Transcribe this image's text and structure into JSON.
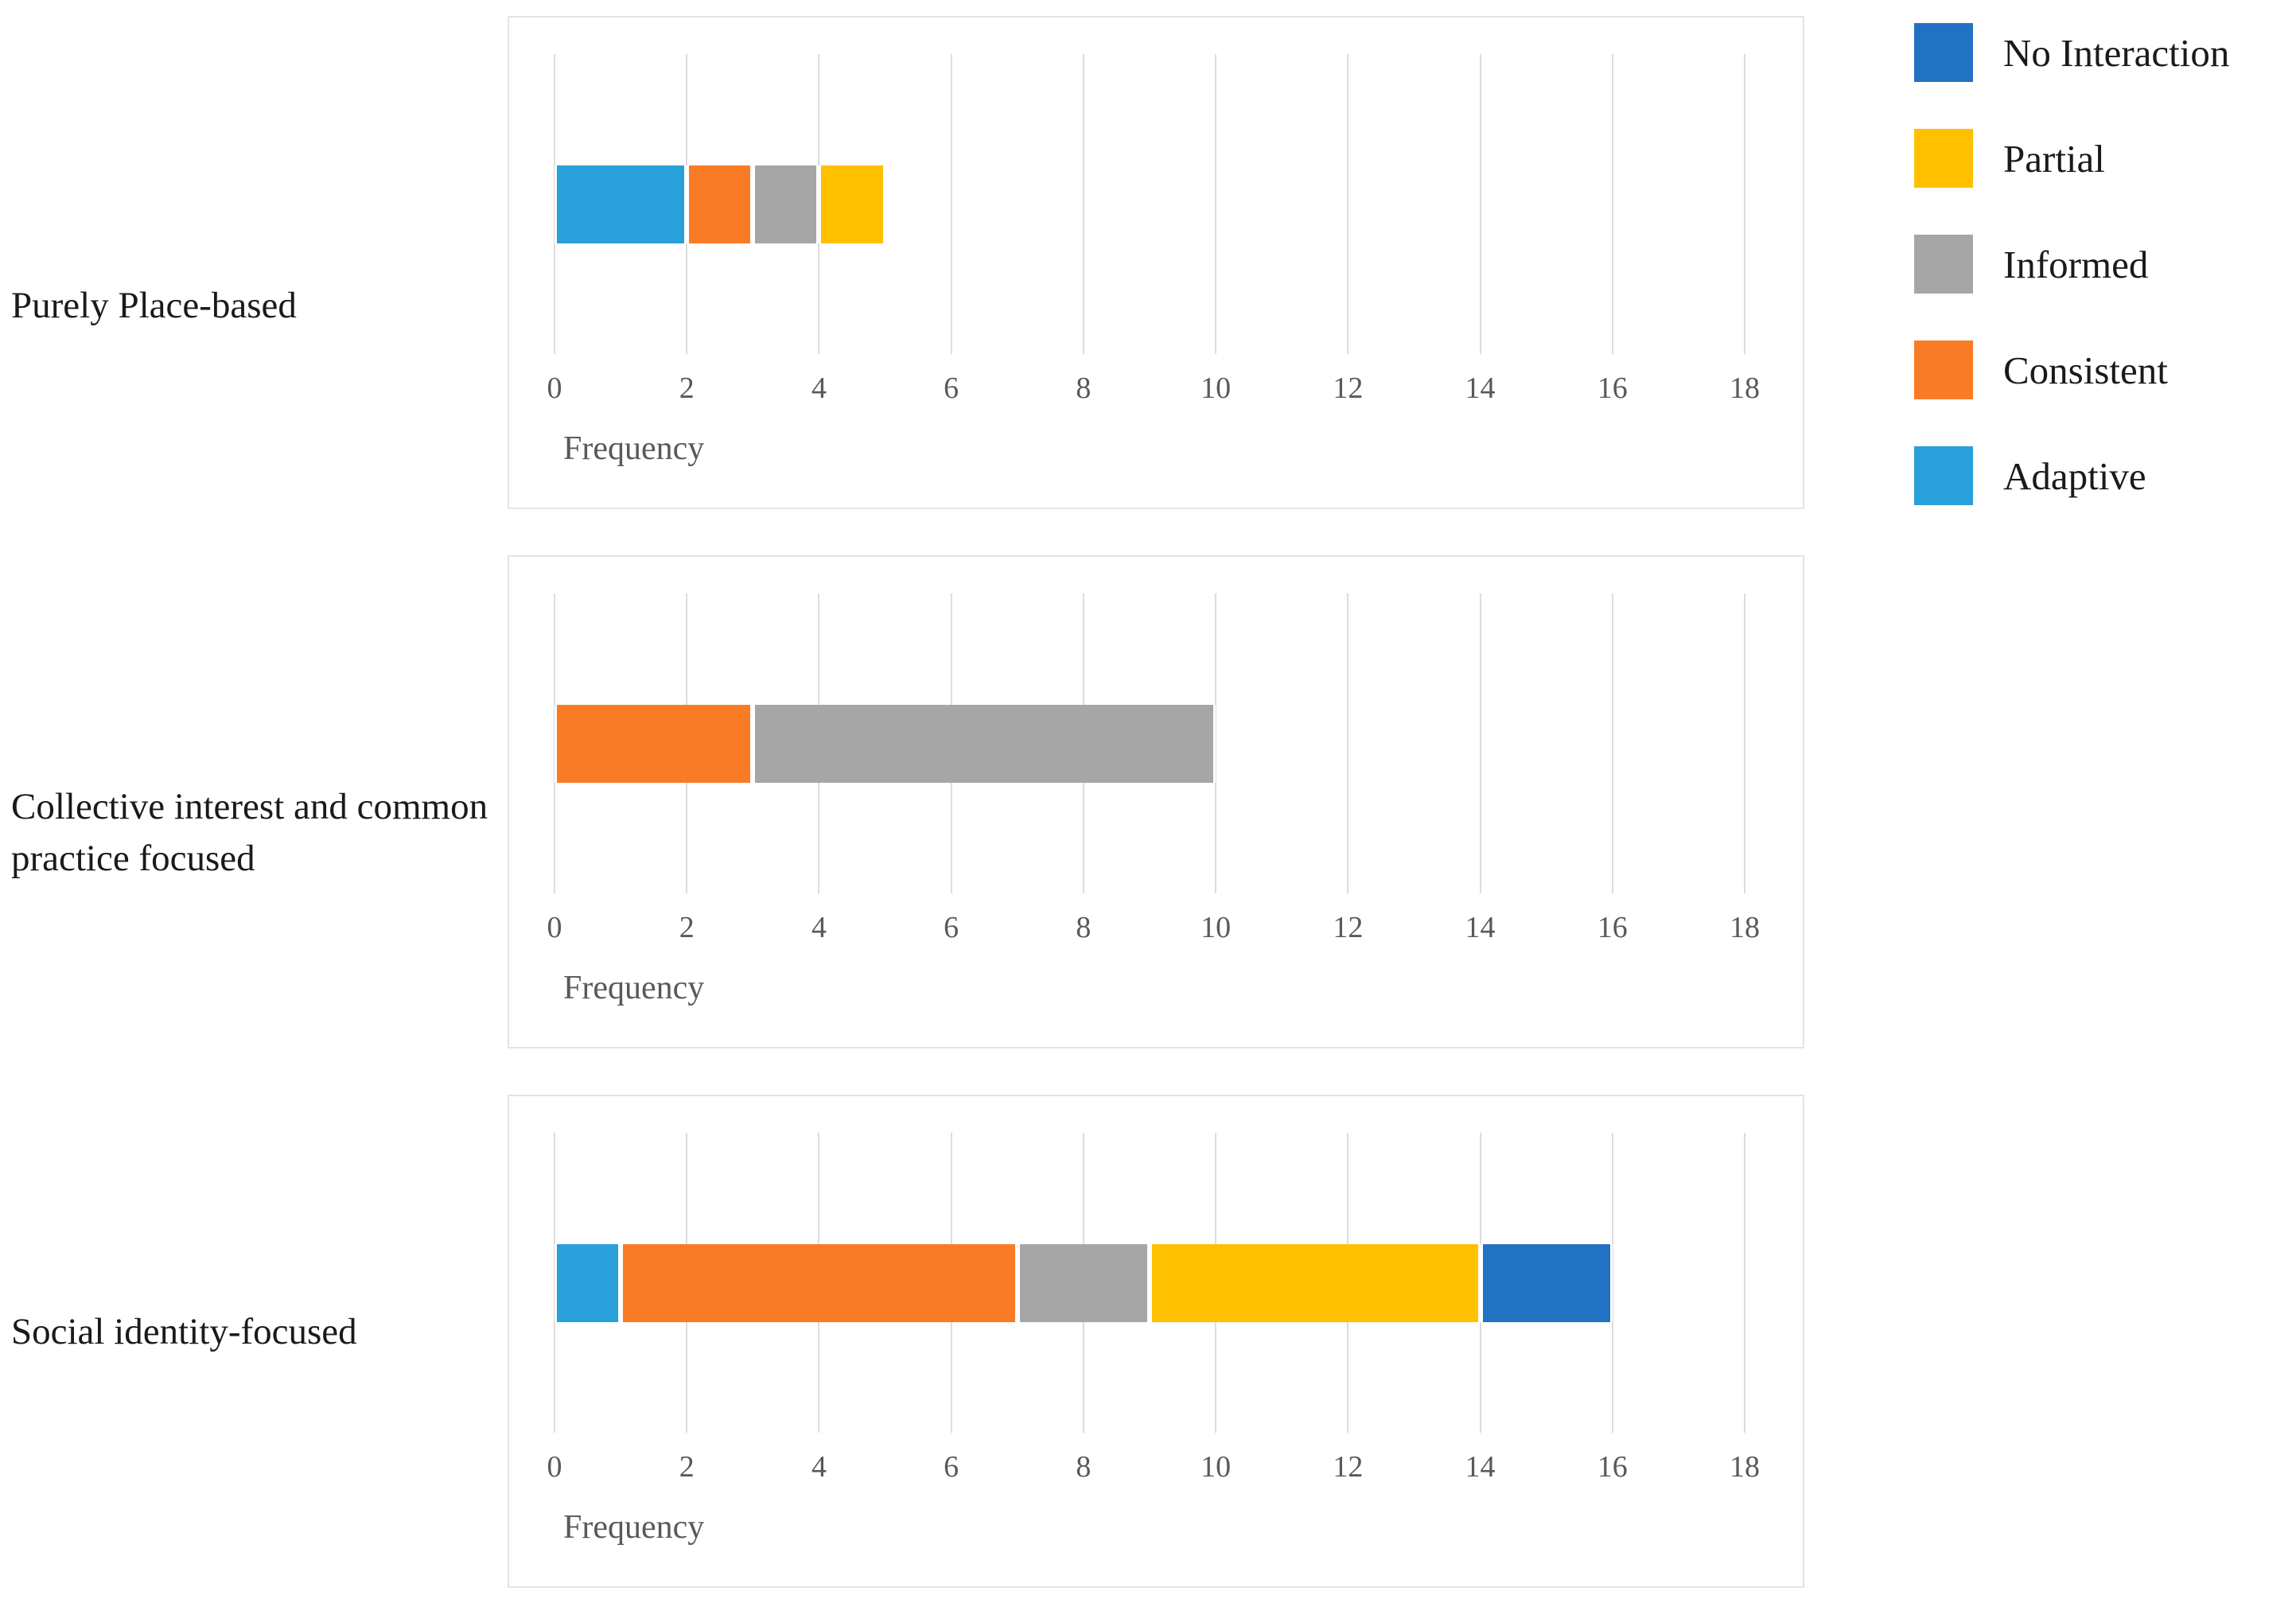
{
  "axis": {
    "xlabel": "Frequency",
    "xlim": [
      0,
      18
    ],
    "ticks": [
      0,
      2,
      4,
      6,
      8,
      10,
      12,
      14,
      16,
      18
    ]
  },
  "legend": {
    "position": "top-right",
    "items": [
      {
        "label": "No Interaction",
        "color": "#2272c3"
      },
      {
        "label": "Partial",
        "color": "#ffc000"
      },
      {
        "label": "Informed",
        "color": "#a6a6a6"
      },
      {
        "label": "Consistent",
        "color": "#fa7b25"
      },
      {
        "label": "Adaptive",
        "color": "#29a0d9"
      }
    ]
  },
  "chart_data": [
    {
      "type": "bar",
      "orientation": "horizontal-stacked",
      "category": "Purely Place-based",
      "xlabel": "Frequency",
      "xlim": [
        0,
        18
      ],
      "grid": true,
      "segments": [
        {
          "name": "Adaptive",
          "value": 2
        },
        {
          "name": "Consistent",
          "value": 1
        },
        {
          "name": "Informed",
          "value": 1
        },
        {
          "name": "Partial",
          "value": 1
        }
      ]
    },
    {
      "type": "bar",
      "orientation": "horizontal-stacked",
      "category": "Collective interest and common practice focused",
      "xlabel": "Frequency",
      "xlim": [
        0,
        18
      ],
      "grid": true,
      "segments": [
        {
          "name": "Consistent",
          "value": 3
        },
        {
          "name": "Informed",
          "value": 7
        }
      ]
    },
    {
      "type": "bar",
      "orientation": "horizontal-stacked",
      "category": "Social identity-focused",
      "xlabel": "Frequency",
      "xlim": [
        0,
        18
      ],
      "grid": true,
      "segments": [
        {
          "name": "Adaptive",
          "value": 1
        },
        {
          "name": "Consistent",
          "value": 6
        },
        {
          "name": "Informed",
          "value": 2
        },
        {
          "name": "Partial",
          "value": 5
        },
        {
          "name": "No Interaction",
          "value": 2
        }
      ]
    }
  ]
}
